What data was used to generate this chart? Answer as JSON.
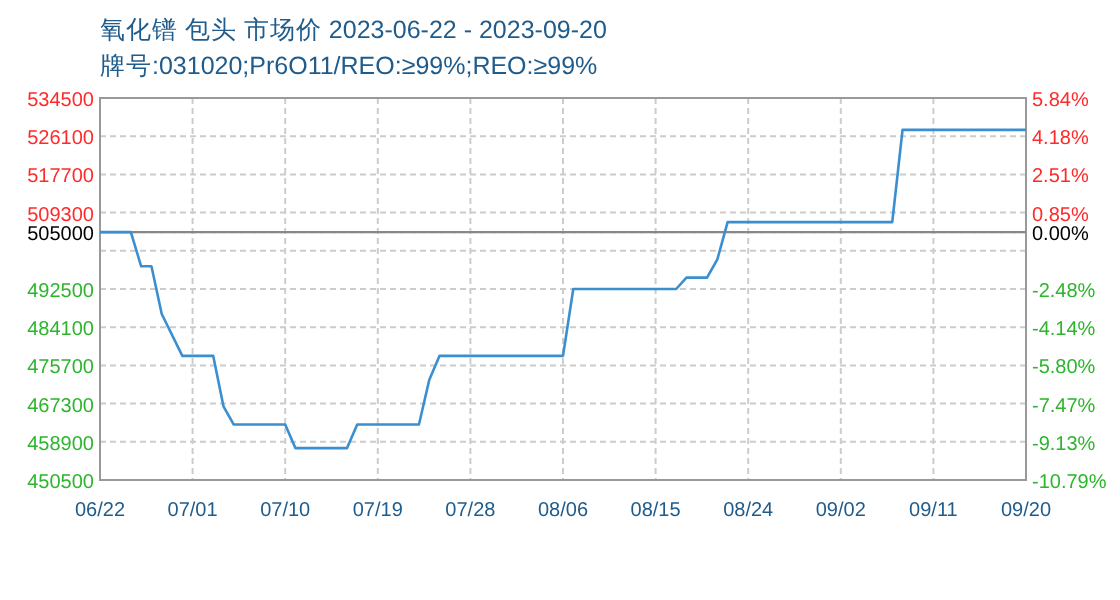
{
  "chart_data": {
    "type": "line",
    "title": "氧化镨 包头 市场价 2023-06-22 - 2023-09-20",
    "subtitle": "牌号:031020;Pr6O11/REO:≥99%;REO:≥99%",
    "x": [
      "2023-06-22",
      "2023-06-25",
      "2023-06-26",
      "2023-06-27",
      "2023-06-28",
      "2023-06-30",
      "2023-07-03",
      "2023-07-04",
      "2023-07-05",
      "2023-07-10",
      "2023-07-11",
      "2023-07-16",
      "2023-07-17",
      "2023-07-23",
      "2023-07-24",
      "2023-07-25",
      "2023-08-06",
      "2023-08-07",
      "2023-08-17",
      "2023-08-18",
      "2023-08-20",
      "2023-08-21",
      "2023-08-22",
      "2023-09-07",
      "2023-09-08",
      "2023-09-20"
    ],
    "series": [
      {
        "color": "#3a8fd0",
        "values": [
          505000,
          505000,
          497500,
          497500,
          487000,
          477800,
          477800,
          466700,
          462700,
          462700,
          457500,
          457500,
          462700,
          462700,
          472500,
          477800,
          477800,
          492500,
          492500,
          495000,
          495000,
          499000,
          507200,
          507200,
          527500,
          527500
        ]
      }
    ],
    "xlim": [
      "2023-06-22",
      "2023-09-20"
    ],
    "xticks": [
      {
        "value": "2023-06-22",
        "label": "06/22"
      },
      {
        "value": "2023-07-01",
        "label": "07/01"
      },
      {
        "value": "2023-07-10",
        "label": "07/10"
      },
      {
        "value": "2023-07-19",
        "label": "07/19"
      },
      {
        "value": "2023-07-28",
        "label": "07/28"
      },
      {
        "value": "2023-08-06",
        "label": "08/06"
      },
      {
        "value": "2023-08-15",
        "label": "08/15"
      },
      {
        "value": "2023-08-24",
        "label": "08/24"
      },
      {
        "value": "2023-09-02",
        "label": "09/02"
      },
      {
        "value": "2023-09-11",
        "label": "09/11"
      },
      {
        "value": "2023-09-20",
        "label": "09/20"
      }
    ],
    "ylim": [
      450500,
      534500
    ],
    "yticks": [
      450500,
      458900,
      467300,
      475700,
      484100,
      492500,
      {
        "value": 500900,
        "label": null
      },
      505000,
      509300,
      517700,
      526100,
      534500
    ],
    "y2lim": [
      -10.79,
      5.84
    ],
    "y2ticks": [
      {
        "value": -10.79,
        "label": "-10.79%"
      },
      {
        "value": -9.13,
        "label": "-9.13%"
      },
      {
        "value": -7.47,
        "label": "-7.47%"
      },
      {
        "value": -5.8,
        "label": "-5.80%"
      },
      {
        "value": -4.14,
        "label": "-4.14%"
      },
      {
        "value": -2.48,
        "label": "-2.48%"
      },
      {
        "value": 0.0,
        "label": "0.00%"
      },
      {
        "value": 0.85,
        "label": "0.85%"
      },
      {
        "value": 2.51,
        "label": "2.51%"
      },
      {
        "value": 4.18,
        "label": "4.18%"
      },
      {
        "value": 5.84,
        "label": "5.84%"
      }
    ],
    "ref_lines": [
      {
        "axis": "y",
        "value": 505000,
        "color": "#888888"
      }
    ],
    "grid": true,
    "marker": "none",
    "line_style": "solid"
  }
}
